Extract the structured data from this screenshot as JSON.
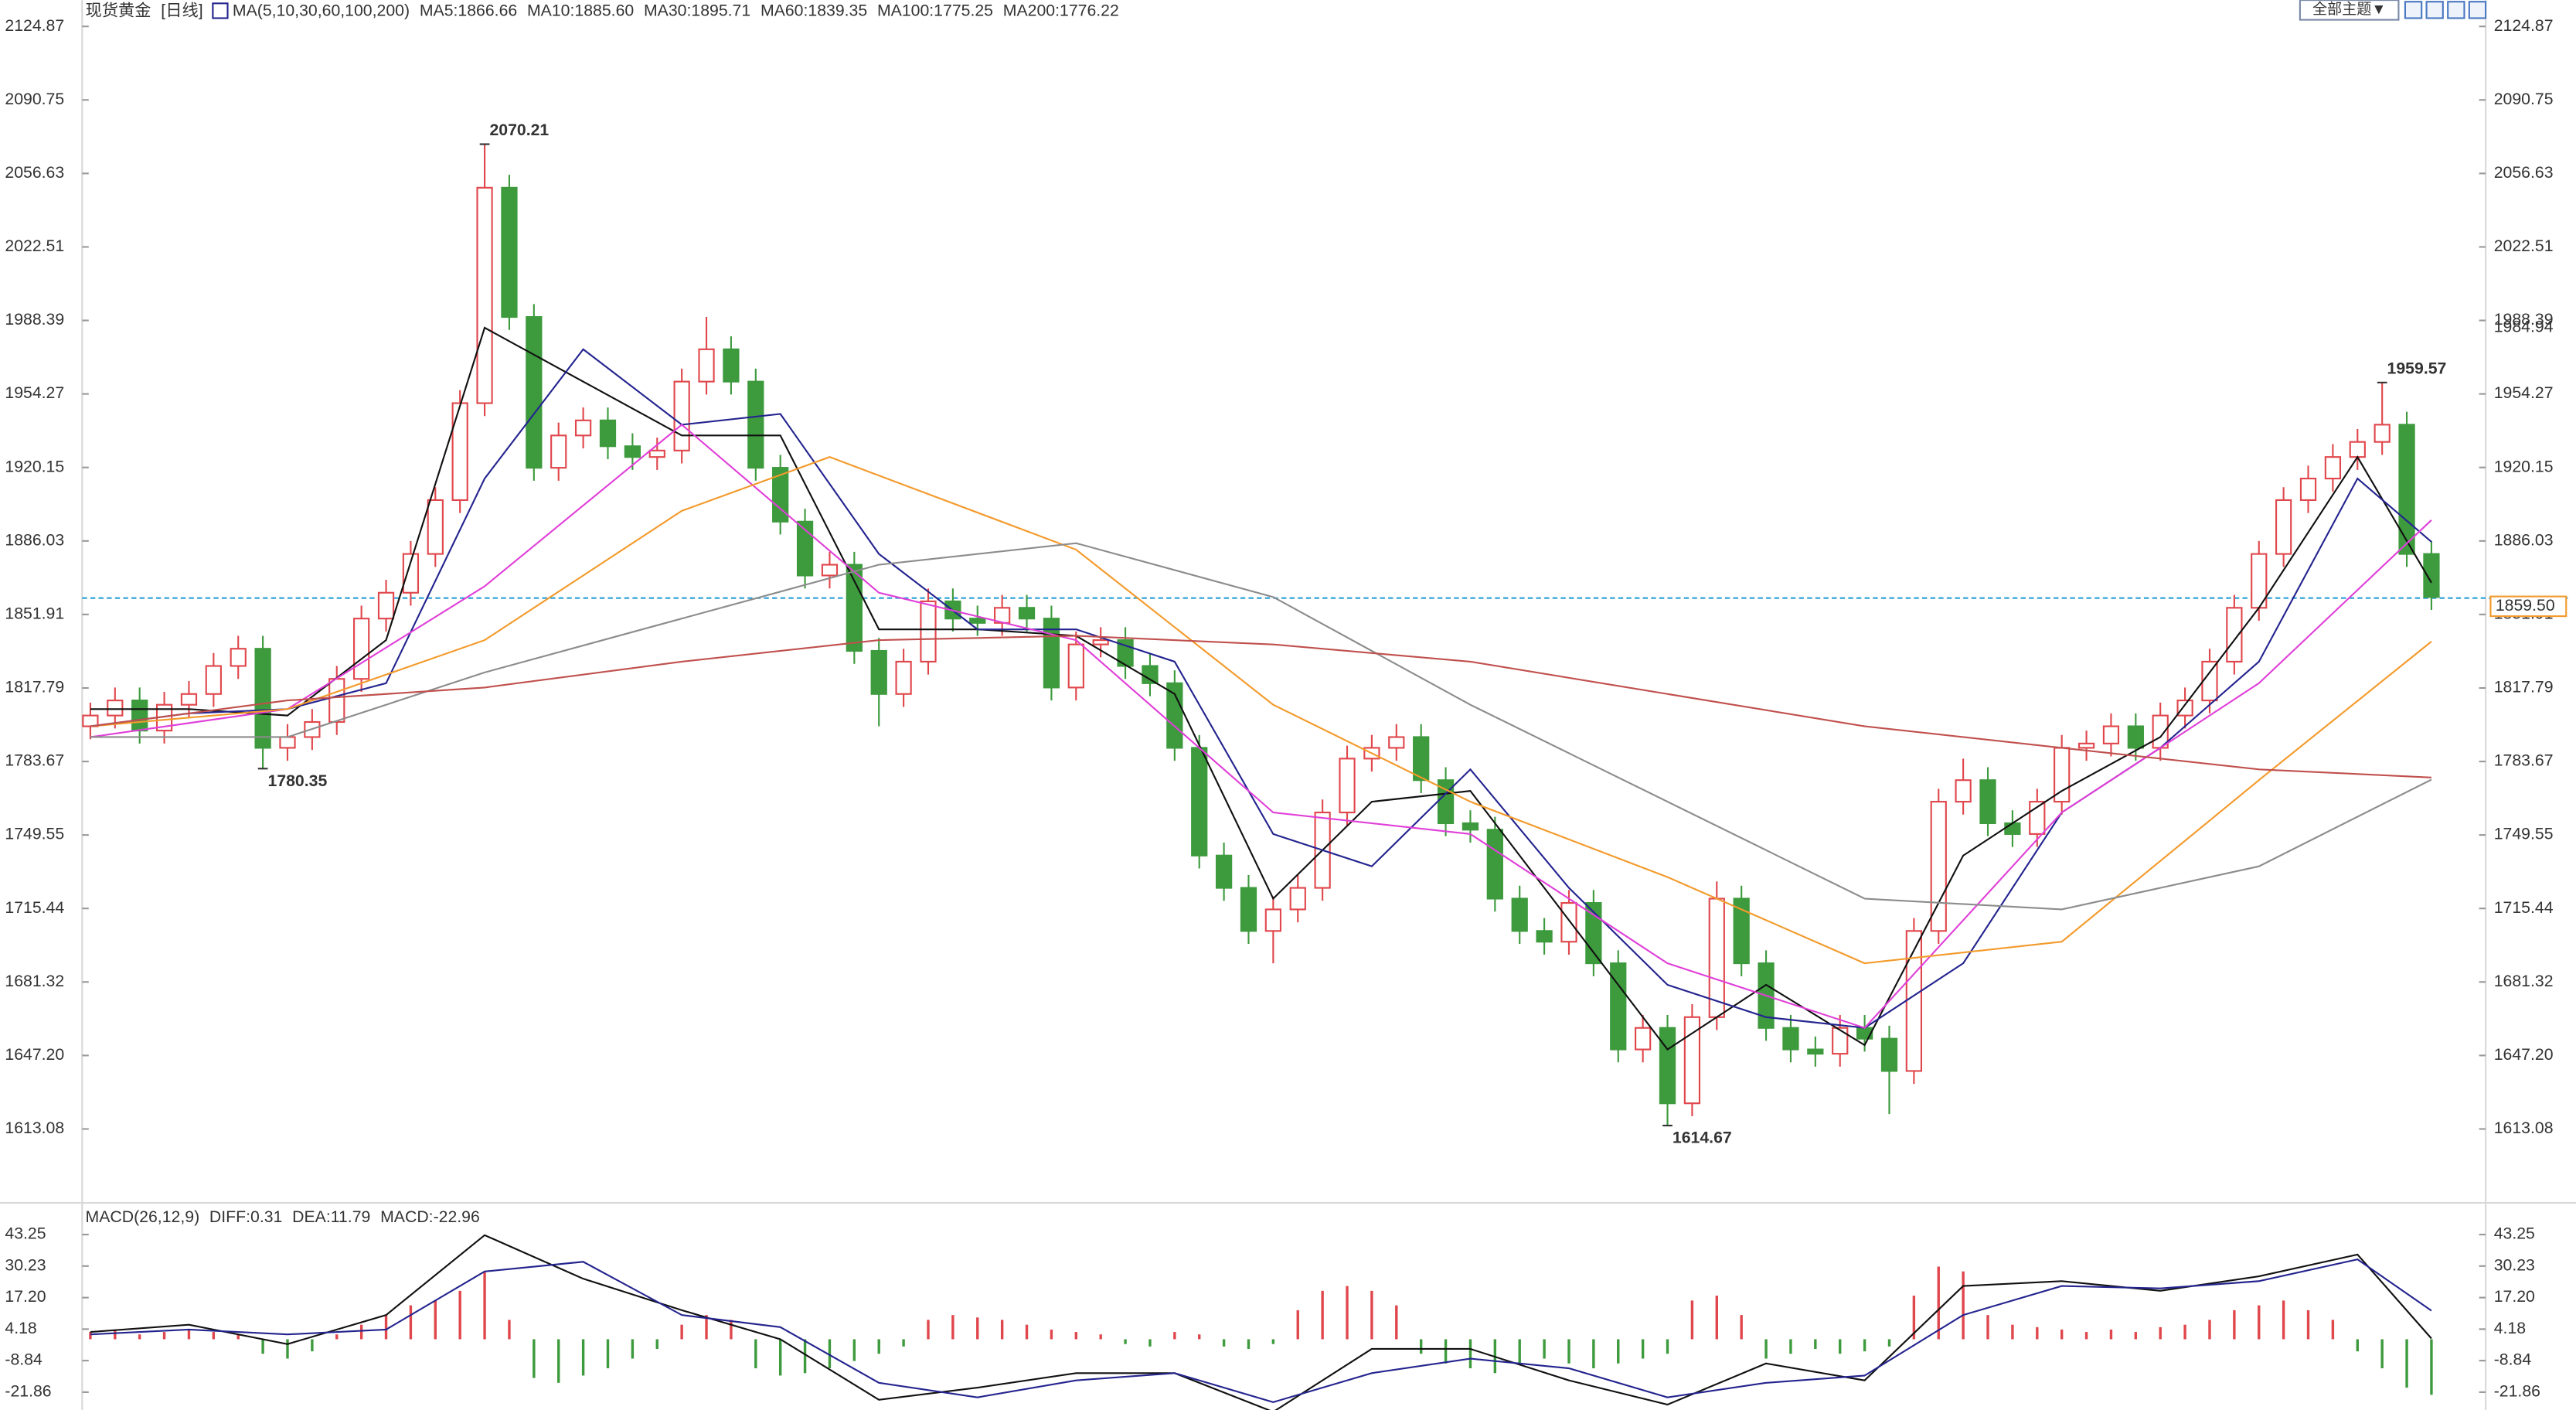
{
  "toolbar": {
    "theme": "全部主题▼"
  },
  "chart_data": [
    {
      "type": "candlestick",
      "title": "现货黄金",
      "subtitle": "[日线]",
      "ma_legend_title": "MA(5,10,30,60,100,200)",
      "up_color": "#e0474c",
      "down_color": "#3d9a3d",
      "open": [
        1800,
        1805,
        1812,
        1798,
        1810,
        1815,
        1828,
        1836,
        1790,
        1795,
        1802,
        1822,
        1850,
        1862,
        1880,
        1905,
        1950,
        2050,
        1990,
        1920,
        1935,
        1942,
        1930,
        1925,
        1928,
        1960,
        1975,
        1960,
        1920,
        1895,
        1870,
        1875,
        1835,
        1815,
        1830,
        1858,
        1850,
        1848,
        1855,
        1850,
        1818,
        1838,
        1840,
        1828,
        1820,
        1790,
        1740,
        1725,
        1705,
        1715,
        1725,
        1760,
        1785,
        1790,
        1795,
        1775,
        1755,
        1752,
        1720,
        1705,
        1700,
        1718,
        1690,
        1650,
        1660,
        1625,
        1665,
        1720,
        1690,
        1660,
        1650,
        1648,
        1660,
        1655,
        1640,
        1705,
        1765,
        1775,
        1755,
        1750,
        1765,
        1790,
        1792,
        1800,
        1790,
        1805,
        1812,
        1830,
        1855,
        1880,
        1905,
        1915,
        1925,
        1932,
        1940,
        1880
      ],
      "high": [
        1811,
        1818,
        1818,
        1816,
        1821,
        1834,
        1842,
        1842,
        1801,
        1808,
        1828,
        1856,
        1868,
        1886,
        1911,
        1956,
        2070.21,
        2056,
        1996,
        1941,
        1948,
        1948,
        1936,
        1934,
        1966,
        1990,
        1981,
        1966,
        1926,
        1901,
        1881,
        1881,
        1841,
        1836,
        1864,
        1864,
        1856,
        1861,
        1861,
        1856,
        1844,
        1846,
        1846,
        1834,
        1826,
        1796,
        1746,
        1731,
        1721,
        1731,
        1766,
        1791,
        1796,
        1801,
        1801,
        1781,
        1761,
        1758,
        1726,
        1711,
        1724,
        1724,
        1696,
        1666,
        1666,
        1671,
        1728,
        1726,
        1696,
        1666,
        1656,
        1666,
        1666,
        1661,
        1711,
        1771,
        1785,
        1781,
        1761,
        1771,
        1796,
        1798,
        1806,
        1806,
        1811,
        1818,
        1836,
        1861,
        1886,
        1911,
        1921,
        1931,
        1938,
        1959.57,
        1946,
        1886
      ],
      "low": [
        1794,
        1799,
        1792,
        1792,
        1804,
        1809,
        1822,
        1780.35,
        1784,
        1789,
        1796,
        1816,
        1844,
        1856,
        1874,
        1899,
        1944,
        1984,
        1914,
        1914,
        1929,
        1924,
        1919,
        1919,
        1922,
        1954,
        1954,
        1914,
        1889,
        1864,
        1864,
        1829,
        1800,
        1809,
        1824,
        1844,
        1842,
        1842,
        1844,
        1812,
        1812,
        1832,
        1822,
        1814,
        1784,
        1734,
        1719,
        1699,
        1690,
        1709,
        1719,
        1754,
        1779,
        1784,
        1769,
        1749,
        1746,
        1714,
        1699,
        1694,
        1694,
        1684,
        1644,
        1644,
        1614.67,
        1619,
        1659,
        1684,
        1654,
        1644,
        1642,
        1642,
        1649,
        1620,
        1634,
        1699,
        1759,
        1749,
        1744,
        1744,
        1759,
        1784,
        1786,
        1784,
        1784,
        1799,
        1806,
        1824,
        1849,
        1874,
        1899,
        1909,
        1919,
        1926,
        1874,
        1854
      ],
      "close": [
        1805,
        1812,
        1798,
        1810,
        1815,
        1828,
        1836,
        1790,
        1795,
        1802,
        1822,
        1850,
        1862,
        1880,
        1905,
        1950,
        2050,
        1990,
        1920,
        1935,
        1942,
        1930,
        1925,
        1928,
        1960,
        1975,
        1960,
        1920,
        1895,
        1870,
        1875,
        1835,
        1815,
        1830,
        1858,
        1850,
        1848,
        1855,
        1850,
        1818,
        1838,
        1840,
        1828,
        1820,
        1790,
        1740,
        1725,
        1705,
        1715,
        1725,
        1760,
        1785,
        1790,
        1795,
        1775,
        1755,
        1752,
        1720,
        1705,
        1700,
        1718,
        1690,
        1650,
        1660,
        1625,
        1665,
        1720,
        1690,
        1660,
        1650,
        1648,
        1660,
        1655,
        1640,
        1705,
        1765,
        1775,
        1755,
        1750,
        1765,
        1790,
        1792,
        1800,
        1790,
        1805,
        1812,
        1830,
        1855,
        1880,
        1905,
        1915,
        1925,
        1932,
        1940,
        1880,
        1860
      ],
      "ma": [
        {
          "name": "MA5:1866.66",
          "color": "#111111",
          "x": [
            0,
            4,
            8,
            12,
            16,
            20,
            24,
            28,
            32,
            36,
            40,
            44,
            48,
            52,
            56,
            60,
            64,
            68,
            72,
            76,
            80,
            84,
            88,
            92,
            95
          ],
          "values": [
            1808,
            1808,
            1805,
            1840,
            1985,
            1960,
            1935,
            1935,
            1845,
            1845,
            1842,
            1815,
            1720,
            1765,
            1770,
            1710,
            1650,
            1680,
            1652,
            1740,
            1770,
            1795,
            1855,
            1925,
            1866.66
          ]
        },
        {
          "name": "MA10:1885.60",
          "color": "#24248f",
          "x": [
            0,
            4,
            8,
            12,
            16,
            20,
            24,
            28,
            32,
            36,
            40,
            44,
            48,
            52,
            56,
            60,
            64,
            68,
            72,
            76,
            80,
            84,
            88,
            92,
            95
          ],
          "values": [
            1800,
            1806,
            1808,
            1820,
            1915,
            1975,
            1940,
            1945,
            1880,
            1845,
            1845,
            1830,
            1750,
            1735,
            1780,
            1725,
            1680,
            1665,
            1660,
            1690,
            1760,
            1790,
            1830,
            1915,
            1885.6
          ]
        },
        {
          "name": "MA30:1895.71",
          "color": "#e040d8",
          "x": [
            0,
            8,
            16,
            24,
            32,
            40,
            48,
            56,
            64,
            72,
            80,
            88,
            95
          ],
          "values": [
            1795,
            1808,
            1865,
            1940,
            1862,
            1840,
            1760,
            1750,
            1690,
            1660,
            1760,
            1820,
            1895.71
          ]
        },
        {
          "name": "MA60:1839.35",
          "color": "#f39a2b",
          "x": [
            0,
            8,
            16,
            24,
            30,
            40,
            48,
            56,
            64,
            72,
            80,
            88,
            95
          ],
          "values": [
            1800,
            1808,
            1840,
            1900,
            1925,
            1882,
            1810,
            1765,
            1730,
            1690,
            1700,
            1775,
            1839.35
          ]
        },
        {
          "name": "MA100:1775.25",
          "color": "#8c8c8c",
          "x": [
            0,
            8,
            16,
            24,
            32,
            40,
            48,
            56,
            64,
            72,
            80,
            88,
            95
          ],
          "values": [
            1795,
            1795,
            1825,
            1850,
            1875,
            1885,
            1860,
            1810,
            1765,
            1720,
            1715,
            1735,
            1775.25
          ]
        },
        {
          "name": "MA200:1776.22",
          "color": "#c0504d",
          "x": [
            0,
            8,
            16,
            24,
            32,
            40,
            48,
            56,
            64,
            72,
            80,
            88,
            95
          ],
          "values": [
            1800,
            1812,
            1818,
            1830,
            1840,
            1842,
            1838,
            1830,
            1815,
            1800,
            1790,
            1780,
            1776.22
          ]
        }
      ],
      "price_line": {
        "value": 1859.5,
        "label": "1859.50"
      },
      "marker": {
        "value": 1984.94,
        "label": "1984.94"
      },
      "ylim": [
        1580.3,
        2137.1
      ],
      "yticks": [
        2124.87,
        2090.75,
        2056.63,
        2022.51,
        1988.39,
        1954.27,
        1920.15,
        1886.03,
        1851.91,
        1817.79,
        1783.67,
        1749.55,
        1715.44,
        1681.32,
        {
          "value": 1647.2,
          "label": "1647.20"
        },
        1613.08
      ],
      "grid": false
    },
    {
      "type": "macd",
      "title": "MACD(26,12,9)",
      "series": [
        {
          "name": "DIFF:0.31",
          "color": "#111111",
          "x": [
            0,
            4,
            8,
            12,
            16,
            20,
            24,
            28,
            32,
            36,
            40,
            44,
            48,
            52,
            56,
            60,
            64,
            68,
            72,
            76,
            80,
            84,
            88,
            92,
            95
          ],
          "values": [
            3,
            6,
            -2,
            10,
            43,
            25,
            12,
            0,
            -25,
            -20,
            -14,
            -14,
            -30,
            -4,
            -4,
            -17,
            -27,
            -10,
            -17,
            22,
            24,
            20,
            26,
            35,
            0.31
          ]
        },
        {
          "name": "DEA:11.79",
          "color": "#24248f",
          "x": [
            0,
            4,
            8,
            12,
            16,
            20,
            24,
            28,
            32,
            36,
            40,
            44,
            48,
            52,
            56,
            60,
            64,
            68,
            72,
            76,
            80,
            84,
            88,
            92,
            95
          ],
          "values": [
            2,
            4,
            2,
            4,
            28,
            32,
            10,
            5,
            -18,
            -24,
            -17,
            -14,
            -26,
            -14,
            -8,
            -12,
            -24,
            -18,
            -15,
            10,
            22,
            21,
            24,
            33,
            11.79
          ]
        }
      ],
      "histogram": {
        "name": "MACD:-22.96",
        "color": "#e040d8",
        "up_color": "#e0474c",
        "down_color": "#3d9a3d",
        "values": [
          3,
          4,
          2,
          3,
          4,
          3,
          2,
          -6,
          -8,
          -5,
          2,
          6,
          10,
          14,
          16,
          20,
          28,
          8,
          -16,
          -18,
          -15,
          -12,
          -8,
          -4,
          6,
          10,
          8,
          -12,
          -15,
          -14,
          -12,
          -9,
          -6,
          -3,
          8,
          10,
          9,
          8,
          6,
          4,
          3,
          2,
          -2,
          -3,
          3,
          2,
          -3,
          -4,
          -2,
          12,
          20,
          22,
          20,
          14,
          -6,
          -10,
          -12,
          -14,
          -10,
          -8,
          -10,
          -12,
          -10,
          -8,
          -6,
          16,
          18,
          10,
          -8,
          -6,
          -4,
          -6,
          -5,
          -3,
          18,
          30,
          28,
          10,
          6,
          5,
          4,
          3,
          4,
          3,
          5,
          6,
          8,
          12,
          14,
          16,
          12,
          8,
          -5,
          -12,
          -20,
          -22.96
        ]
      },
      "ylim": [
        -29.2,
        54.3
      ],
      "yticks": [
        43.25,
        30.23,
        {
          "value": 17.2,
          "label": "17.20"
        },
        4.18,
        -8.84,
        -21.86
      ]
    }
  ]
}
